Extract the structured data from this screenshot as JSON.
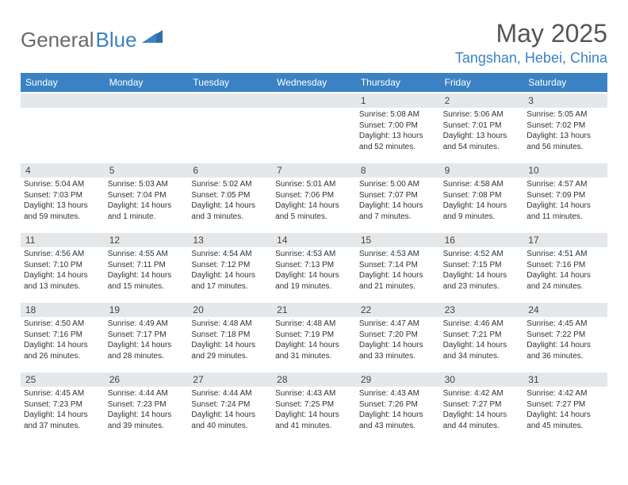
{
  "logo": {
    "text_general": "General",
    "text_blue": "Blue"
  },
  "header": {
    "month_title": "May 2025",
    "location": "Tangshan, Hebei, China"
  },
  "colors": {
    "header_bg": "#3b82c4",
    "daynum_bg": "#e5e8eb",
    "text": "#333333",
    "title": "#555555",
    "logo_gray": "#6a6a6a"
  },
  "day_names": [
    "Sunday",
    "Monday",
    "Tuesday",
    "Wednesday",
    "Thursday",
    "Friday",
    "Saturday"
  ],
  "weeks": [
    [
      {
        "day": "",
        "lines": [
          "",
          "",
          "",
          ""
        ]
      },
      {
        "day": "",
        "lines": [
          "",
          "",
          "",
          ""
        ]
      },
      {
        "day": "",
        "lines": [
          "",
          "",
          "",
          ""
        ]
      },
      {
        "day": "",
        "lines": [
          "",
          "",
          "",
          ""
        ]
      },
      {
        "day": "1",
        "lines": [
          "Sunrise: 5:08 AM",
          "Sunset: 7:00 PM",
          "Daylight: 13 hours",
          "and 52 minutes."
        ]
      },
      {
        "day": "2",
        "lines": [
          "Sunrise: 5:06 AM",
          "Sunset: 7:01 PM",
          "Daylight: 13 hours",
          "and 54 minutes."
        ]
      },
      {
        "day": "3",
        "lines": [
          "Sunrise: 5:05 AM",
          "Sunset: 7:02 PM",
          "Daylight: 13 hours",
          "and 56 minutes."
        ]
      }
    ],
    [
      {
        "day": "4",
        "lines": [
          "Sunrise: 5:04 AM",
          "Sunset: 7:03 PM",
          "Daylight: 13 hours",
          "and 59 minutes."
        ]
      },
      {
        "day": "5",
        "lines": [
          "Sunrise: 5:03 AM",
          "Sunset: 7:04 PM",
          "Daylight: 14 hours",
          "and 1 minute."
        ]
      },
      {
        "day": "6",
        "lines": [
          "Sunrise: 5:02 AM",
          "Sunset: 7:05 PM",
          "Daylight: 14 hours",
          "and 3 minutes."
        ]
      },
      {
        "day": "7",
        "lines": [
          "Sunrise: 5:01 AM",
          "Sunset: 7:06 PM",
          "Daylight: 14 hours",
          "and 5 minutes."
        ]
      },
      {
        "day": "8",
        "lines": [
          "Sunrise: 5:00 AM",
          "Sunset: 7:07 PM",
          "Daylight: 14 hours",
          "and 7 minutes."
        ]
      },
      {
        "day": "9",
        "lines": [
          "Sunrise: 4:58 AM",
          "Sunset: 7:08 PM",
          "Daylight: 14 hours",
          "and 9 minutes."
        ]
      },
      {
        "day": "10",
        "lines": [
          "Sunrise: 4:57 AM",
          "Sunset: 7:09 PM",
          "Daylight: 14 hours",
          "and 11 minutes."
        ]
      }
    ],
    [
      {
        "day": "11",
        "lines": [
          "Sunrise: 4:56 AM",
          "Sunset: 7:10 PM",
          "Daylight: 14 hours",
          "and 13 minutes."
        ]
      },
      {
        "day": "12",
        "lines": [
          "Sunrise: 4:55 AM",
          "Sunset: 7:11 PM",
          "Daylight: 14 hours",
          "and 15 minutes."
        ]
      },
      {
        "day": "13",
        "lines": [
          "Sunrise: 4:54 AM",
          "Sunset: 7:12 PM",
          "Daylight: 14 hours",
          "and 17 minutes."
        ]
      },
      {
        "day": "14",
        "lines": [
          "Sunrise: 4:53 AM",
          "Sunset: 7:13 PM",
          "Daylight: 14 hours",
          "and 19 minutes."
        ]
      },
      {
        "day": "15",
        "lines": [
          "Sunrise: 4:53 AM",
          "Sunset: 7:14 PM",
          "Daylight: 14 hours",
          "and 21 minutes."
        ]
      },
      {
        "day": "16",
        "lines": [
          "Sunrise: 4:52 AM",
          "Sunset: 7:15 PM",
          "Daylight: 14 hours",
          "and 23 minutes."
        ]
      },
      {
        "day": "17",
        "lines": [
          "Sunrise: 4:51 AM",
          "Sunset: 7:16 PM",
          "Daylight: 14 hours",
          "and 24 minutes."
        ]
      }
    ],
    [
      {
        "day": "18",
        "lines": [
          "Sunrise: 4:50 AM",
          "Sunset: 7:16 PM",
          "Daylight: 14 hours",
          "and 26 minutes."
        ]
      },
      {
        "day": "19",
        "lines": [
          "Sunrise: 4:49 AM",
          "Sunset: 7:17 PM",
          "Daylight: 14 hours",
          "and 28 minutes."
        ]
      },
      {
        "day": "20",
        "lines": [
          "Sunrise: 4:48 AM",
          "Sunset: 7:18 PM",
          "Daylight: 14 hours",
          "and 29 minutes."
        ]
      },
      {
        "day": "21",
        "lines": [
          "Sunrise: 4:48 AM",
          "Sunset: 7:19 PM",
          "Daylight: 14 hours",
          "and 31 minutes."
        ]
      },
      {
        "day": "22",
        "lines": [
          "Sunrise: 4:47 AM",
          "Sunset: 7:20 PM",
          "Daylight: 14 hours",
          "and 33 minutes."
        ]
      },
      {
        "day": "23",
        "lines": [
          "Sunrise: 4:46 AM",
          "Sunset: 7:21 PM",
          "Daylight: 14 hours",
          "and 34 minutes."
        ]
      },
      {
        "day": "24",
        "lines": [
          "Sunrise: 4:45 AM",
          "Sunset: 7:22 PM",
          "Daylight: 14 hours",
          "and 36 minutes."
        ]
      }
    ],
    [
      {
        "day": "25",
        "lines": [
          "Sunrise: 4:45 AM",
          "Sunset: 7:23 PM",
          "Daylight: 14 hours",
          "and 37 minutes."
        ]
      },
      {
        "day": "26",
        "lines": [
          "Sunrise: 4:44 AM",
          "Sunset: 7:23 PM",
          "Daylight: 14 hours",
          "and 39 minutes."
        ]
      },
      {
        "day": "27",
        "lines": [
          "Sunrise: 4:44 AM",
          "Sunset: 7:24 PM",
          "Daylight: 14 hours",
          "and 40 minutes."
        ]
      },
      {
        "day": "28",
        "lines": [
          "Sunrise: 4:43 AM",
          "Sunset: 7:25 PM",
          "Daylight: 14 hours",
          "and 41 minutes."
        ]
      },
      {
        "day": "29",
        "lines": [
          "Sunrise: 4:43 AM",
          "Sunset: 7:26 PM",
          "Daylight: 14 hours",
          "and 43 minutes."
        ]
      },
      {
        "day": "30",
        "lines": [
          "Sunrise: 4:42 AM",
          "Sunset: 7:27 PM",
          "Daylight: 14 hours",
          "and 44 minutes."
        ]
      },
      {
        "day": "31",
        "lines": [
          "Sunrise: 4:42 AM",
          "Sunset: 7:27 PM",
          "Daylight: 14 hours",
          "and 45 minutes."
        ]
      }
    ]
  ]
}
